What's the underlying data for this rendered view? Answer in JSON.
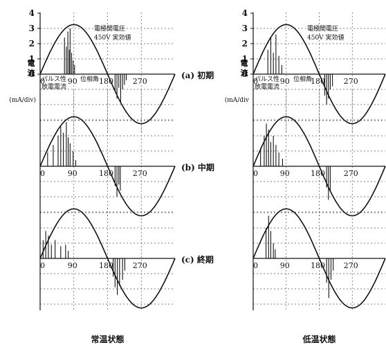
{
  "chart_data": [
    {
      "type": "line",
      "caption": "常温状態",
      "ylabel_chars": [
        "電",
        "流"
      ],
      "yunit": "(mA/div)",
      "xticks": [
        "0",
        "90",
        "180",
        "270"
      ],
      "yticks": [
        "0",
        "1",
        "2",
        "3",
        "4"
      ],
      "ylim": [
        0,
        4
      ],
      "xlim": [
        0,
        360
      ],
      "grid": true,
      "voltage_label": [
        "電極間電圧",
        "450V 実効値"
      ],
      "current_label": [
        "パルス性",
        "放電電流"
      ],
      "phase_label": "位相角",
      "panels": [
        {
          "stage": "(a)  初期",
          "pos_bursts": [
            [
              65,
              2.4
            ],
            [
              70,
              1.8
            ],
            [
              74,
              2.8
            ],
            [
              78,
              1.6
            ],
            [
              80,
              3.0
            ],
            [
              84,
              1.4
            ],
            [
              88,
              0.9
            ],
            [
              92,
              0.6
            ]
          ],
          "neg_bursts": [
            [
              200,
              1.1
            ],
            [
              205,
              1.6
            ],
            [
              210,
              0.9
            ],
            [
              215,
              1.8
            ],
            [
              220,
              1.0
            ],
            [
              225,
              0.7
            ],
            [
              230,
              0.4
            ]
          ]
        },
        {
          "stage": "(b)  中期",
          "pos_bursts": [
            [
              20,
              0.9
            ],
            [
              35,
              1.4
            ],
            [
              48,
              2.0
            ],
            [
              55,
              2.6
            ],
            [
              62,
              2.2
            ],
            [
              70,
              2.9
            ],
            [
              75,
              1.9
            ],
            [
              80,
              1.5
            ],
            [
              88,
              1.0
            ],
            [
              95,
              0.4
            ]
          ],
          "neg_bursts": [
            [
              200,
              1.3
            ],
            [
              205,
              2.0
            ],
            [
              210,
              1.2
            ],
            [
              214,
              1.6
            ]
          ]
        },
        {
          "stage": "(c)  終期",
          "pos_bursts": [
            [
              8,
              1.2
            ],
            [
              15,
              1.8
            ],
            [
              22,
              1.5
            ],
            [
              30,
              0.9
            ],
            [
              40,
              1.2
            ],
            [
              55,
              0.8
            ],
            [
              68,
              0.9
            ],
            [
              75,
              0.5
            ]
          ],
          "neg_bursts": [
            [
              195,
              1.2
            ],
            [
              200,
              1.9
            ],
            [
              206,
              2.4
            ],
            [
              212,
              1.8
            ],
            [
              220,
              1.4
            ],
            [
              226,
              0.8
            ]
          ]
        }
      ]
    },
    {
      "type": "line",
      "caption": "低温状態",
      "ylabel_chars": [
        "電",
        "流"
      ],
      "yunit": "(mA/div",
      "xticks": [
        "0",
        "90",
        "180",
        "270"
      ],
      "yticks": [
        "0",
        "1",
        "2",
        "3",
        "4"
      ],
      "ylim": [
        0,
        4
      ],
      "xlim": [
        0,
        360
      ],
      "grid": true,
      "voltage_label": [
        "電極間電圧",
        "450V 実効値"
      ],
      "current_label": [
        "パルス性",
        "放電電流"
      ],
      "phase_label": "位相角",
      "panels": [
        {
          "stage": "",
          "pos_bursts": [
            [
              40,
              1.6
            ],
            [
              48,
              2.4
            ],
            [
              55,
              1.4
            ],
            [
              62,
              2.6
            ],
            [
              70,
              1.2
            ],
            [
              78,
              0.6
            ]
          ],
          "neg_bursts": [
            [
              195,
              1.4
            ],
            [
              200,
              2.0
            ],
            [
              205,
              1.6
            ],
            [
              210,
              1.0
            ],
            [
              216,
              0.8
            ]
          ]
        },
        {
          "stage": "",
          "pos_bursts": [
            [
              20,
              1.2
            ],
            [
              30,
              2.0
            ],
            [
              36,
              2.8
            ],
            [
              42,
              2.4
            ],
            [
              48,
              1.6
            ],
            [
              55,
              2.0
            ],
            [
              62,
              1.4
            ],
            [
              70,
              0.9
            ],
            [
              80,
              0.5
            ]
          ],
          "neg_bursts": [
            [
              200,
              1.4
            ],
            [
              205,
              2.2
            ],
            [
              210,
              1.6
            ]
          ]
        },
        {
          "stage": "",
          "pos_bursts": [
            [
              35,
              2.0
            ],
            [
              42,
              2.8
            ],
            [
              48,
              1.8
            ],
            [
              55,
              1.0
            ],
            [
              60,
              0.6
            ]
          ],
          "neg_bursts": [
            [
              200,
              1.6
            ],
            [
              206,
              2.6
            ],
            [
              212,
              1.4
            ],
            [
              218,
              0.8
            ]
          ]
        }
      ]
    }
  ]
}
